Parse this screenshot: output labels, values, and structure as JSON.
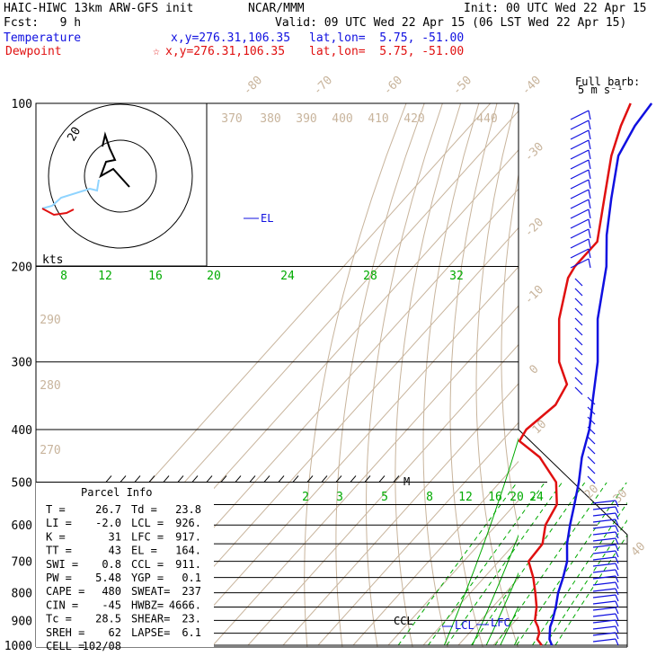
{
  "header": {
    "model": "HAIC-HIWC 13km ARW-GFS init",
    "center": "NCAR/MMM",
    "init": "Init: 00 UTC Wed 22 Apr 15",
    "fcst": "Fcst:   9 h",
    "valid": "Valid: 09 UTC Wed 22 Apr 15 (06 LST Wed 22 Apr 15)",
    "temp_label": "Temperature",
    "temp_xy": "x,y=276.31,106.35",
    "temp_latlon": "lat,lon=  5.75, -51.00",
    "dew_label": "Dewpoint",
    "dew_mark": "☆",
    "dew_xy": "x,y=276.31,106.35",
    "dew_latlon": "lat,lon=  5.75, -51.00"
  },
  "barb_legend": {
    "line1": "Full barb:",
    "line2": "5 m s⁻¹"
  },
  "hodograph": {
    "speed_label": "kts",
    "ring_label": "20"
  },
  "parcel": {
    "title": "Parcel Info",
    "rows": [
      {
        "l": "T   =",
        "lv": "26.7",
        "r": "Td =",
        "rv": "23.8"
      },
      {
        "l": "LI  =",
        "lv": "-2.0",
        "r": "LCL =",
        "rv": "926."
      },
      {
        "l": "K   =",
        "lv": "31",
        "r": "LFC =",
        "rv": "917."
      },
      {
        "l": "TT  =",
        "lv": "43",
        "r": "EL  =",
        "rv": "164."
      },
      {
        "l": "SWI =",
        "lv": "0.8",
        "r": "CCL =",
        "rv": "911."
      },
      {
        "l": "PW  =",
        "lv": "5.48",
        "r": "YGP =",
        "rv": "0.1"
      },
      {
        "l": "CAPE =",
        "lv": "480",
        "r": "SWEAT=",
        "rv": "237"
      },
      {
        "l": "CIN =",
        "lv": "-45",
        "r": "HWBZ=",
        "rv": "4666."
      },
      {
        "l": "Tc  =",
        "lv": "28.5",
        "r": "SHEAR=",
        "rv": "23."
      },
      {
        "l": "SREH =",
        "lv": "62",
        "r": "LAPSE=",
        "rv": "6.1"
      },
      {
        "l": "CELL =",
        "lv": "102/08",
        "r": "",
        "rv": ""
      }
    ]
  },
  "colors": {
    "temperature": "#1010e0",
    "dewpoint": "#e01010",
    "isobar": "#000000",
    "isotherm": "#c8b49c",
    "adiabat": "#c8b49c",
    "moist_adiabat": "#00aa00",
    "mixing_ratio": "#00aa00"
  },
  "chart_data": {
    "type": "skew-T log-P sounding",
    "pressure_levels": [
      100,
      200,
      300,
      400,
      500,
      600,
      700,
      800,
      900,
      1000
    ],
    "isotherm_labels": [
      "-80",
      "-70",
      "-60",
      "-50",
      "-40",
      "-30",
      "-20",
      "-10",
      "0",
      "10",
      "20",
      "30",
      "40"
    ],
    "theta_labels": [
      "370",
      "380",
      "390",
      "400",
      "410",
      "420",
      "440",
      "290",
      "280",
      "270"
    ],
    "theta_e_labels": [
      "8",
      "12",
      "16",
      "20",
      "24",
      "28",
      "32"
    ],
    "mixing_ratio_labels": [
      "2",
      "3",
      "5",
      "8",
      "12",
      "16",
      "20",
      "24"
    ],
    "levels_annotations": [
      "EL",
      "CCL",
      "LCL",
      "LFC",
      "M"
    ],
    "temperature": [
      {
        "p": 1000,
        "t": 26.7
      },
      {
        "p": 975,
        "t": 24.5
      },
      {
        "p": 950,
        "t": 23.0
      },
      {
        "p": 925,
        "t": 21.5
      },
      {
        "p": 900,
        "t": 20.5
      },
      {
        "p": 850,
        "t": 18.0
      },
      {
        "p": 800,
        "t": 15.0
      },
      {
        "p": 750,
        "t": 12.5
      },
      {
        "p": 700,
        "t": 9.5
      },
      {
        "p": 650,
        "t": 5.0
      },
      {
        "p": 600,
        "t": 1.0
      },
      {
        "p": 550,
        "t": -3.0
      },
      {
        "p": 500,
        "t": -7.5
      },
      {
        "p": 450,
        "t": -13.0
      },
      {
        "p": 400,
        "t": -18.0
      },
      {
        "p": 350,
        "t": -25.0
      },
      {
        "p": 300,
        "t": -33.0
      },
      {
        "p": 250,
        "t": -44.0
      },
      {
        "p": 200,
        "t": -55.0
      },
      {
        "p": 175,
        "t": -63.0
      },
      {
        "p": 150,
        "t": -71.0
      },
      {
        "p": 125,
        "t": -80.0
      },
      {
        "p": 110,
        "t": -83.0
      },
      {
        "p": 100,
        "t": -84.0
      }
    ],
    "dewpoint": [
      {
        "p": 1000,
        "t": 23.8
      },
      {
        "p": 975,
        "t": 21.0
      },
      {
        "p": 950,
        "t": 20.0
      },
      {
        "p": 925,
        "t": 18.0
      },
      {
        "p": 900,
        "t": 15.5
      },
      {
        "p": 850,
        "t": 12.5
      },
      {
        "p": 800,
        "t": 8.5
      },
      {
        "p": 750,
        "t": 4.0
      },
      {
        "p": 700,
        "t": -1.5
      },
      {
        "p": 650,
        "t": -2.0
      },
      {
        "p": 600,
        "t": -6.0
      },
      {
        "p": 550,
        "t": -8.0
      },
      {
        "p": 500,
        "t": -14.0
      },
      {
        "p": 450,
        "t": -25.0
      },
      {
        "p": 420,
        "t": -35.0
      },
      {
        "p": 400,
        "t": -36.0
      },
      {
        "p": 360,
        "t": -34.0
      },
      {
        "p": 330,
        "t": -36.0
      },
      {
        "p": 300,
        "t": -44.0
      },
      {
        "p": 250,
        "t": -55.0
      },
      {
        "p": 210,
        "t": -63.0
      },
      {
        "p": 200,
        "t": -64.0
      },
      {
        "p": 180,
        "t": -64.0
      },
      {
        "p": 150,
        "t": -73.0
      },
      {
        "p": 125,
        "t": -82.0
      },
      {
        "p": 110,
        "t": -87.0
      },
      {
        "p": 100,
        "t": -90.0
      }
    ]
  }
}
